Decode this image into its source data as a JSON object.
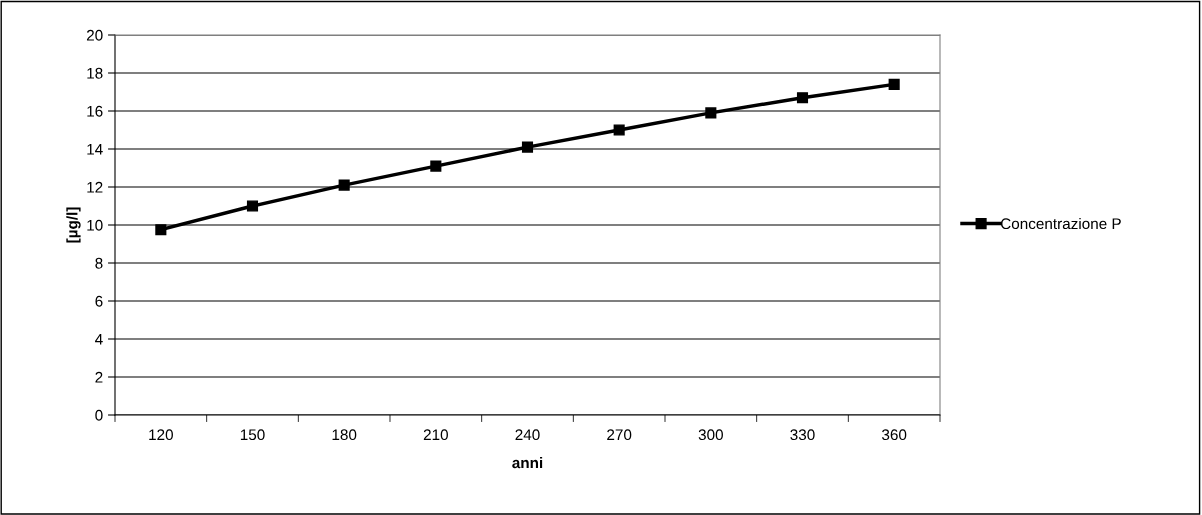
{
  "chart_data": {
    "type": "line",
    "xlabel": "anni",
    "ylabel": "[µg/l]",
    "categories": [
      "120",
      "150",
      "180",
      "210",
      "240",
      "270",
      "300",
      "330",
      "360"
    ],
    "series": [
      {
        "name": "Concentrazione P",
        "color": "#000000",
        "values": [
          9.75,
          11.0,
          12.1,
          13.1,
          14.1,
          15.0,
          15.9,
          16.7,
          17.4
        ]
      }
    ],
    "ylim": [
      0,
      20
    ],
    "yticks": [
      0,
      2,
      4,
      6,
      8,
      10,
      12,
      14,
      16,
      18,
      20
    ],
    "grid": "y",
    "legend": "right",
    "marker": "square",
    "line_style": "solid"
  }
}
